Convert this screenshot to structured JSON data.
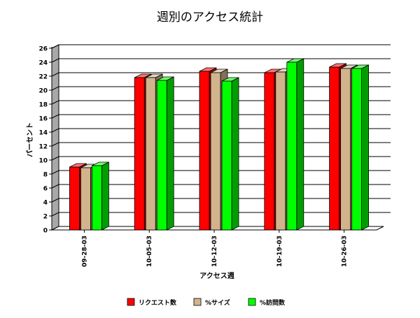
{
  "chart_data": {
    "type": "bar",
    "title": "週別のアクセス統計",
    "xlabel": "アクセス週",
    "ylabel": "パーセント",
    "ylim": [
      0,
      26
    ],
    "ytick_step": 2,
    "categories": [
      "09-28-03",
      "10-05-03",
      "10-12-03",
      "10-19-03",
      "10-26-03"
    ],
    "series": [
      {
        "name": "リクエスト数",
        "color": "#ff0000",
        "values": [
          9.0,
          21.8,
          22.7,
          22.5,
          23.3
        ]
      },
      {
        "name": "%サイズ",
        "color": "#d2b48c",
        "values": [
          8.9,
          21.8,
          22.5,
          22.6,
          23.1
        ]
      },
      {
        "name": "%訪問数",
        "color": "#00ff00",
        "values": [
          9.2,
          21.4,
          21.3,
          24.0,
          23.1
        ]
      }
    ],
    "grid": true,
    "legend_position": "bottom"
  }
}
